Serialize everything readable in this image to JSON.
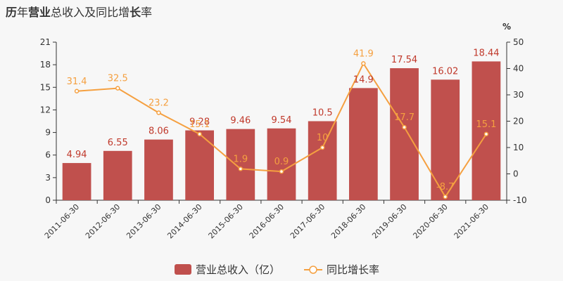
{
  "title": {
    "p1": "历",
    "p2": "年",
    "p3": "营业",
    "p4": "总",
    "p5": "收入及同比增",
    "p6": "长",
    "p7": "率"
  },
  "chart_data": {
    "type": "bar",
    "categories": [
      "2011-06-30",
      "2012-06-30",
      "2013-06-30",
      "2014-06-30",
      "2015-06-30",
      "2016-06-30",
      "2017-06-30",
      "2018-06-30",
      "2019-06-30",
      "2020-06-30",
      "2021-06-30"
    ],
    "series": [
      {
        "name": "营业总收入（亿）",
        "type": "bar",
        "axis": "left",
        "color": "#c0504d",
        "values": [
          4.94,
          6.55,
          8.06,
          9.28,
          9.46,
          9.54,
          10.5,
          14.9,
          17.54,
          16.02,
          18.44
        ],
        "labels": [
          "4.94",
          "6.55",
          "8.06",
          "9.28",
          "9.46",
          "9.54",
          "10.5",
          "14.9",
          "17.54",
          "16.02",
          "18.44"
        ]
      },
      {
        "name": "同比增长率",
        "type": "line",
        "axis": "right",
        "color": "#f5a040",
        "values": [
          31.4,
          32.5,
          23.2,
          15.1,
          1.9,
          0.9,
          10,
          41.9,
          17.7,
          -8.7,
          15.1
        ],
        "labels": [
          "31.4",
          "32.5",
          "23.2",
          "15.1",
          "1.9",
          "0.9",
          "10",
          "41.9",
          "17.7",
          "-8.7",
          "15.1"
        ]
      }
    ],
    "y_left": {
      "ylim": [
        0,
        21
      ],
      "ticks": [
        "0",
        "3",
        "6",
        "9",
        "12",
        "15",
        "18",
        "21"
      ]
    },
    "y_right": {
      "ylim": [
        -10,
        50
      ],
      "ticks": [
        "-10",
        "0",
        "10",
        "20",
        "30",
        "40",
        "50"
      ],
      "unit": "%"
    },
    "legend_position": "bottom-center",
    "grid": false
  }
}
